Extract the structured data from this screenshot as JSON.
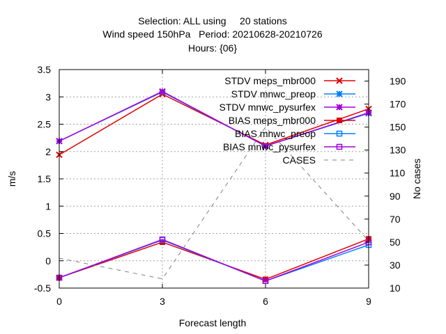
{
  "chart_data": {
    "type": "line",
    "title_lines": [
      "Selection: ALL using     20 stations",
      "Wind speed 150hPa   Period: 20210628-20210726",
      "Hours: {06}"
    ],
    "xlabel": "Forecast length",
    "ylabel": "m/s",
    "y2label": "No cases",
    "x": [
      0,
      3,
      6,
      9
    ],
    "xlim": [
      0,
      9
    ],
    "ylim": [
      -0.5,
      3.5
    ],
    "y2lim": [
      10,
      200
    ],
    "x_ticks": [
      0,
      3,
      6,
      9
    ],
    "y_ticks": [
      -0.5,
      0,
      0.5,
      1,
      1.5,
      2,
      2.5,
      3,
      3.5
    ],
    "y_tick_labels": [
      "-0.5",
      "0",
      "0.5",
      "1",
      "1.5",
      "2",
      "2.5",
      "3",
      "3.5"
    ],
    "y2_ticks": [
      10,
      30,
      50,
      70,
      90,
      110,
      130,
      150,
      170,
      190
    ],
    "grid": true,
    "legend_position": "top-right",
    "series": [
      {
        "name": "STDV meps_mbr000",
        "axis": "y",
        "color": "#e00000",
        "marker": "x",
        "dash": "",
        "values": [
          1.94,
          3.05,
          2.12,
          2.78
        ]
      },
      {
        "name": "STDV mnwc_preop",
        "axis": "y",
        "color": "#0080ff",
        "marker": "star",
        "dash": "",
        "values": [
          2.19,
          3.09,
          2.1,
          2.7
        ]
      },
      {
        "name": "STDV mnwc_pysurfex",
        "axis": "y",
        "color": "#a000e0",
        "marker": "star",
        "dash": "",
        "values": [
          2.19,
          3.1,
          2.1,
          2.71
        ]
      },
      {
        "name": "BIAS meps_mbr000",
        "axis": "y",
        "color": "#e00000",
        "marker": "square-filled",
        "dash": "",
        "values": [
          -0.31,
          0.34,
          -0.34,
          0.4
        ]
      },
      {
        "name": "BIAS mnwc_preop",
        "axis": "y",
        "color": "#0080ff",
        "marker": "square",
        "dash": "",
        "values": [
          -0.31,
          0.38,
          -0.37,
          0.29
        ]
      },
      {
        "name": "BIAS mnwc_pysurfex",
        "axis": "y",
        "color": "#a000e0",
        "marker": "square",
        "dash": "",
        "values": [
          -0.31,
          0.39,
          -0.37,
          0.34
        ]
      },
      {
        "name": "CASES",
        "axis": "y2",
        "color": "#808080",
        "marker": "",
        "dash": "6,6",
        "values": [
          36,
          18,
          150,
          51
        ]
      }
    ]
  }
}
